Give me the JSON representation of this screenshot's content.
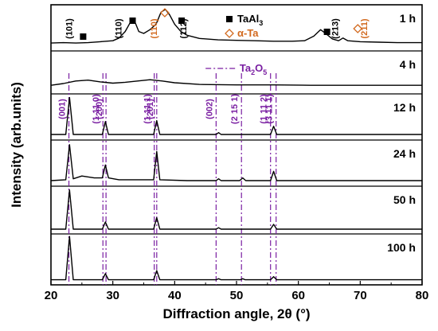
{
  "chart_data": {
    "type": "line",
    "title": "",
    "xlabel": "Diffraction angle, 2θ (°)",
    "ylabel": "Intensity (arb.units)",
    "xlim": [
      20,
      80
    ],
    "xticks": [
      20,
      30,
      40,
      50,
      60,
      70,
      80
    ],
    "xtick_labels": [
      "20",
      "30",
      "40",
      "50",
      "60",
      "70",
      "80"
    ],
    "grid": false,
    "legend_position": "top-right",
    "colors": {
      "trace": "#000000",
      "taal3_marker": "#000000",
      "ta_marker": "#d2691e",
      "ta2o5": "#7a1fa2"
    },
    "legend": [
      {
        "symbol": "filled-square",
        "label_main": "TaAl",
        "label_sub": "3"
      },
      {
        "symbol": "open-diamond",
        "label_main": "α-Ta",
        "label_sub": ""
      }
    ],
    "ta2o5_label": {
      "main": "Ta",
      "sub1": "2",
      "mid": "O",
      "sub2": "5"
    },
    "panels": [
      {
        "name": "1 h",
        "baseline": 0.18,
        "points": [
          [
            20,
            0.17
          ],
          [
            22,
            0.18
          ],
          [
            24,
            0.17
          ],
          [
            26,
            0.18
          ],
          [
            28,
            0.2
          ],
          [
            30,
            0.22
          ],
          [
            31,
            0.28
          ],
          [
            32,
            0.42
          ],
          [
            33,
            0.66
          ],
          [
            33.6,
            0.62
          ],
          [
            34.2,
            0.42
          ],
          [
            35,
            0.38
          ],
          [
            36,
            0.46
          ],
          [
            37,
            0.58
          ],
          [
            37.8,
            0.84
          ],
          [
            38.5,
            0.9
          ],
          [
            39.2,
            0.78
          ],
          [
            40,
            0.58
          ],
          [
            41,
            0.42
          ],
          [
            42,
            0.34
          ],
          [
            44,
            0.27
          ],
          [
            47,
            0.24
          ],
          [
            50,
            0.23
          ],
          [
            53,
            0.22
          ],
          [
            56,
            0.21
          ],
          [
            59,
            0.21
          ],
          [
            61,
            0.22
          ],
          [
            62.5,
            0.32
          ],
          [
            63.6,
            0.46
          ],
          [
            64.4,
            0.38
          ],
          [
            65.5,
            0.26
          ],
          [
            66.5,
            0.22
          ],
          [
            67.2,
            0.28
          ],
          [
            68,
            0.22
          ],
          [
            70,
            0.2
          ],
          [
            73,
            0.19
          ],
          [
            76,
            0.18
          ],
          [
            80,
            0.18
          ]
        ],
        "taal3_peaks": [
          {
            "x": 25.2,
            "label": "(101)"
          },
          {
            "x": 33.2,
            "label": "(110)"
          },
          {
            "x": 40.1,
            "label": "(112)"
          },
          {
            "x": 63.6,
            "label": "(213)"
          }
        ],
        "ta_peaks": [
          {
            "x": 38.4,
            "label": "(110)"
          },
          {
            "x": 69.6,
            "label": "(211)"
          }
        ]
      },
      {
        "name": "4 h",
        "baseline": 0.2,
        "points": [
          [
            20,
            0.2
          ],
          [
            22,
            0.24
          ],
          [
            24,
            0.3
          ],
          [
            26,
            0.32
          ],
          [
            28,
            0.28
          ],
          [
            30,
            0.25
          ],
          [
            32,
            0.27
          ],
          [
            34,
            0.3
          ],
          [
            36,
            0.33
          ],
          [
            38,
            0.3
          ],
          [
            40,
            0.26
          ],
          [
            44,
            0.22
          ],
          [
            50,
            0.21
          ],
          [
            56,
            0.21
          ],
          [
            62,
            0.2
          ],
          [
            70,
            0.2
          ],
          [
            80,
            0.2
          ]
        ]
      },
      {
        "name": "12 h",
        "baseline": 0.12,
        "points": [
          [
            20,
            0.12
          ],
          [
            22.4,
            0.12
          ],
          [
            23,
            0.92
          ],
          [
            23.6,
            0.12
          ],
          [
            28.3,
            0.12
          ],
          [
            28.8,
            0.4
          ],
          [
            29.3,
            0.12
          ],
          [
            36.6,
            0.12
          ],
          [
            37.1,
            0.42
          ],
          [
            37.6,
            0.12
          ],
          [
            46.7,
            0.12
          ],
          [
            47.1,
            0.16
          ],
          [
            47.5,
            0.12
          ],
          [
            55.5,
            0.12
          ],
          [
            56,
            0.3
          ],
          [
            56.5,
            0.12
          ],
          [
            80,
            0.12
          ]
        ]
      },
      {
        "name": "24 h",
        "baseline": 0.12,
        "points": [
          [
            20,
            0.12
          ],
          [
            22.4,
            0.14
          ],
          [
            23,
            0.9
          ],
          [
            23.6,
            0.16
          ],
          [
            25,
            0.22
          ],
          [
            27,
            0.18
          ],
          [
            28.3,
            0.18
          ],
          [
            28.8,
            0.46
          ],
          [
            29.3,
            0.18
          ],
          [
            31,
            0.14
          ],
          [
            34,
            0.14
          ],
          [
            36.6,
            0.14
          ],
          [
            37.1,
            0.75
          ],
          [
            37.6,
            0.14
          ],
          [
            42,
            0.12
          ],
          [
            46.7,
            0.12
          ],
          [
            47.1,
            0.16
          ],
          [
            47.5,
            0.12
          ],
          [
            50.5,
            0.12
          ],
          [
            51,
            0.18
          ],
          [
            51.5,
            0.12
          ],
          [
            55.5,
            0.12
          ],
          [
            56,
            0.32
          ],
          [
            56.5,
            0.12
          ],
          [
            80,
            0.12
          ]
        ]
      },
      {
        "name": "50 h",
        "baseline": 0.1,
        "points": [
          [
            20,
            0.1
          ],
          [
            22.4,
            0.1
          ],
          [
            23,
            0.92
          ],
          [
            23.6,
            0.1
          ],
          [
            28.3,
            0.1
          ],
          [
            28.8,
            0.25
          ],
          [
            29.3,
            0.1
          ],
          [
            36.6,
            0.1
          ],
          [
            37.1,
            0.34
          ],
          [
            37.6,
            0.1
          ],
          [
            46.7,
            0.1
          ],
          [
            47.1,
            0.13
          ],
          [
            47.5,
            0.1
          ],
          [
            55.5,
            0.1
          ],
          [
            56,
            0.2
          ],
          [
            56.5,
            0.1
          ],
          [
            80,
            0.1
          ]
        ]
      },
      {
        "name": "100 h",
        "baseline": 0.1,
        "points": [
          [
            20,
            0.1
          ],
          [
            22.4,
            0.1
          ],
          [
            23,
            0.95
          ],
          [
            23.6,
            0.1
          ],
          [
            28.3,
            0.1
          ],
          [
            28.8,
            0.22
          ],
          [
            29.3,
            0.1
          ],
          [
            36.6,
            0.1
          ],
          [
            37.1,
            0.28
          ],
          [
            37.6,
            0.1
          ],
          [
            46.7,
            0.1
          ],
          [
            47.1,
            0.12
          ],
          [
            47.5,
            0.1
          ],
          [
            50.6,
            0.1
          ],
          [
            51,
            0.12
          ],
          [
            51.4,
            0.1
          ],
          [
            55.5,
            0.1
          ],
          [
            56,
            0.16
          ],
          [
            56.5,
            0.1
          ],
          [
            80,
            0.1
          ]
        ]
      }
    ],
    "ta2o5_lines": [
      {
        "x": 22.9,
        "label": "(001)"
      },
      {
        "x": 28.4,
        "label": "(1 11 0)"
      },
      {
        "x": 28.9,
        "label": "(200)"
      },
      {
        "x": 36.7,
        "label": "(1 11 1)"
      },
      {
        "x": 37.1,
        "label": "(201)"
      },
      {
        "x": 46.7,
        "label": "(002)"
      },
      {
        "x": 50.8,
        "label": "(2 15 1)"
      },
      {
        "x": 55.5,
        "label": "(1 11 2)"
      },
      {
        "x": 56.4,
        "label": "(3 11 1)"
      }
    ]
  }
}
